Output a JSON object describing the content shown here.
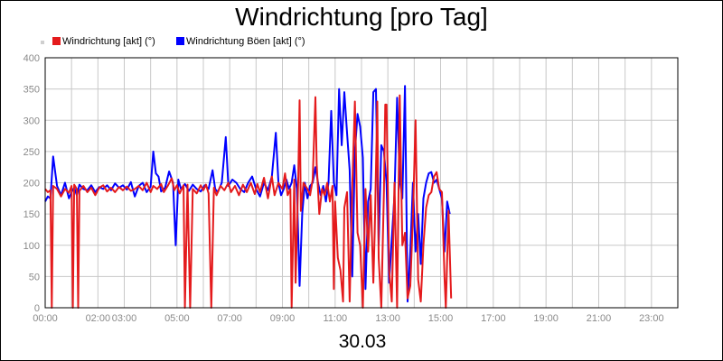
{
  "chart_data": {
    "type": "line",
    "title": "Windrichtung [pro Tag]",
    "date_label": "30.03",
    "xlabel": "",
    "ylabel": "",
    "ylim": [
      0,
      400
    ],
    "xlim_hours": [
      0,
      24
    ],
    "y_ticks": [
      "0",
      "50",
      "100",
      "150",
      "200",
      "250",
      "300",
      "350",
      "400"
    ],
    "x_ticks": [
      "00:00",
      "02:00",
      "03:00",
      "05:00",
      "07:00",
      "09:00",
      "11:00",
      "13:00",
      "15:00",
      "17:00",
      "19:00",
      "21:00",
      "23:00"
    ],
    "x_tick_hours": [
      0,
      2,
      3,
      5,
      7,
      9,
      11,
      13,
      15,
      17,
      19,
      21,
      23
    ],
    "grid": true,
    "legend_position": "top-left",
    "series": [
      {
        "name": "Windrichtung [akt] (°)",
        "color": "#e41a1c",
        "points": [
          [
            0.0,
            190
          ],
          [
            0.1,
            185
          ],
          [
            0.2,
            188
          ],
          [
            0.25,
            0
          ],
          [
            0.3,
            195
          ],
          [
            0.45,
            190
          ],
          [
            0.6,
            178
          ],
          [
            0.75,
            190
          ],
          [
            0.9,
            184
          ],
          [
            1.0,
            195
          ],
          [
            1.05,
            0
          ],
          [
            1.1,
            197
          ],
          [
            1.2,
            190
          ],
          [
            1.25,
            0
          ],
          [
            1.3,
            187
          ],
          [
            1.45,
            195
          ],
          [
            1.6,
            185
          ],
          [
            1.75,
            192
          ],
          [
            1.9,
            180
          ],
          [
            2.05,
            192
          ],
          [
            2.2,
            196
          ],
          [
            2.35,
            186
          ],
          [
            2.5,
            192
          ],
          [
            2.65,
            185
          ],
          [
            2.8,
            193
          ],
          [
            2.95,
            188
          ],
          [
            3.1,
            194
          ],
          [
            3.25,
            187
          ],
          [
            3.4,
            190
          ],
          [
            3.55,
            195
          ],
          [
            3.7,
            188
          ],
          [
            3.85,
            200
          ],
          [
            4.0,
            185
          ],
          [
            4.1,
            195
          ],
          [
            4.25,
            190
          ],
          [
            4.4,
            198
          ],
          [
            4.5,
            185
          ],
          [
            4.65,
            195
          ],
          [
            4.8,
            207
          ],
          [
            4.9,
            188
          ],
          [
            5.0,
            196
          ],
          [
            5.1,
            183
          ],
          [
            5.25,
            196
          ],
          [
            5.3,
            0
          ],
          [
            5.4,
            197
          ],
          [
            5.5,
            0
          ],
          [
            5.6,
            190
          ],
          [
            5.75,
            183
          ],
          [
            5.9,
            196
          ],
          [
            6.0,
            188
          ],
          [
            6.1,
            197
          ],
          [
            6.2,
            183
          ],
          [
            6.3,
            0
          ],
          [
            6.4,
            192
          ],
          [
            6.5,
            180
          ],
          [
            6.65,
            195
          ],
          [
            6.8,
            188
          ],
          [
            6.95,
            200
          ],
          [
            7.05,
            185
          ],
          [
            7.2,
            195
          ],
          [
            7.35,
            180
          ],
          [
            7.5,
            197
          ],
          [
            7.65,
            185
          ],
          [
            7.8,
            200
          ],
          [
            7.95,
            182
          ],
          [
            8.05,
            198
          ],
          [
            8.15,
            185
          ],
          [
            8.3,
            208
          ],
          [
            8.45,
            175
          ],
          [
            8.6,
            210
          ],
          [
            8.7,
            180
          ],
          [
            8.85,
            200
          ],
          [
            9.0,
            190
          ],
          [
            9.1,
            215
          ],
          [
            9.2,
            180
          ],
          [
            9.3,
            190
          ],
          [
            9.35,
            0
          ],
          [
            9.45,
            205
          ],
          [
            9.5,
            40
          ],
          [
            9.6,
            205
          ],
          [
            9.65,
            332
          ],
          [
            9.7,
            155
          ],
          [
            9.8,
            200
          ],
          [
            9.95,
            190
          ],
          [
            10.05,
            180
          ],
          [
            10.15,
            205
          ],
          [
            10.25,
            337
          ],
          [
            10.3,
            230
          ],
          [
            10.4,
            150
          ],
          [
            10.5,
            190
          ],
          [
            10.6,
            180
          ],
          [
            10.7,
            200
          ],
          [
            10.8,
            170
          ],
          [
            10.9,
            195
          ],
          [
            10.95,
            30
          ],
          [
            11.0,
            170
          ],
          [
            11.1,
            80
          ],
          [
            11.2,
            60
          ],
          [
            11.3,
            10
          ],
          [
            11.35,
            160
          ],
          [
            11.45,
            185
          ],
          [
            11.55,
            10
          ],
          [
            11.65,
            195
          ],
          [
            11.75,
            330
          ],
          [
            11.85,
            120
          ],
          [
            11.95,
            100
          ],
          [
            12.05,
            0
          ],
          [
            12.15,
            190
          ],
          [
            12.25,
            90
          ],
          [
            12.35,
            180
          ],
          [
            12.45,
            40
          ],
          [
            12.5,
            120
          ],
          [
            12.6,
            330
          ],
          [
            12.65,
            80
          ],
          [
            12.75,
            0
          ],
          [
            12.85,
            185
          ],
          [
            12.9,
            325
          ],
          [
            12.95,
            325
          ],
          [
            13.05,
            60
          ],
          [
            13.15,
            10
          ],
          [
            13.25,
            200
          ],
          [
            13.35,
            0
          ],
          [
            13.45,
            340
          ],
          [
            13.55,
            100
          ],
          [
            13.65,
            120
          ],
          [
            13.75,
            15
          ],
          [
            13.85,
            35
          ],
          [
            13.95,
            145
          ],
          [
            14.05,
            300
          ],
          [
            14.15,
            45
          ],
          [
            14.25,
            10
          ],
          [
            14.35,
            100
          ],
          [
            14.45,
            160
          ],
          [
            14.55,
            180
          ],
          [
            14.65,
            185
          ],
          [
            14.75,
            210
          ],
          [
            14.85,
            217
          ],
          [
            14.95,
            190
          ],
          [
            15.05,
            185
          ],
          [
            15.15,
            47
          ],
          [
            15.2,
            0
          ],
          [
            15.3,
            155
          ],
          [
            15.4,
            15
          ]
        ]
      },
      {
        "name": "Windrichtung Böen [akt] (°)",
        "color": "#0000ff",
        "points": [
          [
            0.0,
            170
          ],
          [
            0.1,
            178
          ],
          [
            0.2,
            175
          ],
          [
            0.3,
            242
          ],
          [
            0.45,
            195
          ],
          [
            0.6,
            180
          ],
          [
            0.75,
            200
          ],
          [
            0.9,
            175
          ],
          [
            1.0,
            185
          ],
          [
            1.1,
            192
          ],
          [
            1.2,
            180
          ],
          [
            1.3,
            197
          ],
          [
            1.45,
            190
          ],
          [
            1.6,
            188
          ],
          [
            1.75,
            196
          ],
          [
            1.9,
            185
          ],
          [
            2.05,
            193
          ],
          [
            2.2,
            190
          ],
          [
            2.35,
            196
          ],
          [
            2.5,
            188
          ],
          [
            2.65,
            199
          ],
          [
            2.8,
            192
          ],
          [
            2.95,
            196
          ],
          [
            3.1,
            189
          ],
          [
            3.25,
            201
          ],
          [
            3.4,
            178
          ],
          [
            3.55,
            195
          ],
          [
            3.7,
            200
          ],
          [
            3.85,
            185
          ],
          [
            4.0,
            194
          ],
          [
            4.1,
            250
          ],
          [
            4.2,
            215
          ],
          [
            4.3,
            210
          ],
          [
            4.4,
            186
          ],
          [
            4.55,
            192
          ],
          [
            4.7,
            218
          ],
          [
            4.85,
            200
          ],
          [
            4.95,
            100
          ],
          [
            5.05,
            205
          ],
          [
            5.15,
            190
          ],
          [
            5.3,
            198
          ],
          [
            5.45,
            187
          ],
          [
            5.6,
            197
          ],
          [
            5.75,
            190
          ],
          [
            5.9,
            186
          ],
          [
            6.05,
            196
          ],
          [
            6.2,
            190
          ],
          [
            6.35,
            220
          ],
          [
            6.45,
            190
          ],
          [
            6.55,
            185
          ],
          [
            6.7,
            200
          ],
          [
            6.85,
            273
          ],
          [
            6.95,
            195
          ],
          [
            7.1,
            205
          ],
          [
            7.25,
            200
          ],
          [
            7.4,
            190
          ],
          [
            7.55,
            185
          ],
          [
            7.7,
            200
          ],
          [
            7.85,
            210
          ],
          [
            8.0,
            190
          ],
          [
            8.15,
            178
          ],
          [
            8.3,
            200
          ],
          [
            8.45,
            188
          ],
          [
            8.6,
            210
          ],
          [
            8.75,
            280
          ],
          [
            8.85,
            200
          ],
          [
            8.95,
            180
          ],
          [
            9.05,
            190
          ],
          [
            9.15,
            205
          ],
          [
            9.25,
            190
          ],
          [
            9.35,
            200
          ],
          [
            9.45,
            228
          ],
          [
            9.55,
            190
          ],
          [
            9.65,
            35
          ],
          [
            9.75,
            150
          ],
          [
            9.85,
            200
          ],
          [
            9.95,
            175
          ],
          [
            10.05,
            195
          ],
          [
            10.15,
            200
          ],
          [
            10.25,
            225
          ],
          [
            10.35,
            200
          ],
          [
            10.45,
            180
          ],
          [
            10.55,
            195
          ],
          [
            10.65,
            170
          ],
          [
            10.75,
            200
          ],
          [
            10.85,
            315
          ],
          [
            10.95,
            200
          ],
          [
            11.05,
            180
          ],
          [
            11.15,
            350
          ],
          [
            11.25,
            260
          ],
          [
            11.35,
            345
          ],
          [
            11.45,
            280
          ],
          [
            11.55,
            220
          ],
          [
            11.65,
            50
          ],
          [
            11.75,
            250
          ],
          [
            11.85,
            310
          ],
          [
            11.95,
            290
          ],
          [
            12.05,
            240
          ],
          [
            12.15,
            30
          ],
          [
            12.25,
            170
          ],
          [
            12.35,
            190
          ],
          [
            12.45,
            345
          ],
          [
            12.55,
            350
          ],
          [
            12.65,
            100
          ],
          [
            12.75,
            260
          ],
          [
            12.85,
            250
          ],
          [
            12.95,
            200
          ],
          [
            13.05,
            40
          ],
          [
            13.15,
            110
          ],
          [
            13.25,
            180
          ],
          [
            13.35,
            336
          ],
          [
            13.45,
            205
          ],
          [
            13.55,
            175
          ],
          [
            13.65,
            355
          ],
          [
            13.75,
            10
          ],
          [
            13.85,
            90
          ],
          [
            13.95,
            200
          ],
          [
            14.05,
            90
          ],
          [
            14.15,
            150
          ],
          [
            14.25,
            70
          ],
          [
            14.35,
            175
          ],
          [
            14.45,
            200
          ],
          [
            14.55,
            215
          ],
          [
            14.65,
            217
          ],
          [
            14.75,
            200
          ],
          [
            14.85,
            205
          ],
          [
            14.95,
            190
          ],
          [
            15.05,
            175
          ],
          [
            15.15,
            90
          ],
          [
            15.25,
            170
          ],
          [
            15.35,
            150
          ]
        ]
      }
    ]
  }
}
